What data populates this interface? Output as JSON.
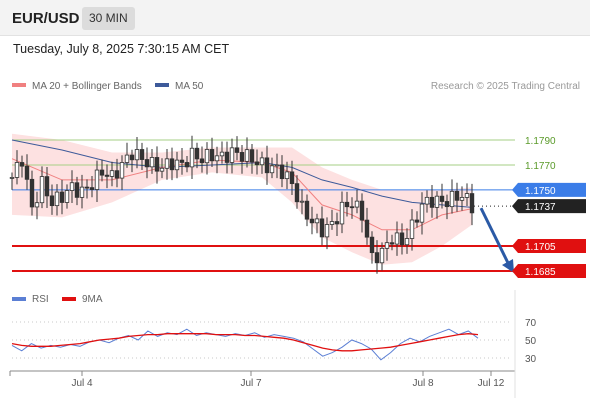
{
  "header": {
    "symbol": "EUR/USD",
    "timeframe": "30 MIN",
    "datetime": "Tuesday, July 8, 2025 7:30:15 AM CET"
  },
  "legend": {
    "ma20_label": "MA 20 + Bollinger Bands",
    "ma50_label": "MA 50",
    "credit": "Research © 2025 Trading Central",
    "rsi_label": "RSI",
    "rsi_ma_label": "9MA"
  },
  "colors": {
    "ma20": "#f08080",
    "band_fill": "#fde1e1",
    "ma50": "#3d5a9a",
    "candle": "#333333",
    "resistance": "#a6cf85",
    "pivot": "#3b7de8",
    "support": "#e01010",
    "current": "#222222",
    "arrow": "#2b5aa6",
    "rsi": "#5b7fd4",
    "rsi_ma": "#e01010"
  },
  "chart_data": [
    {
      "type": "candlestick",
      "title": "EUR/USD 30 MIN",
      "x_ticks": [
        "Jul 4",
        "Jul 7",
        "Jul 8",
        "Jul 12"
      ],
      "levels": [
        {
          "label": "1.1790",
          "value": 1.179,
          "role": "resistance"
        },
        {
          "label": "1.1770",
          "value": 1.177,
          "role": "resistance"
        },
        {
          "label": "1.1750",
          "value": 1.175,
          "role": "pivot"
        },
        {
          "label": "1.1737",
          "value": 1.1737,
          "role": "current"
        },
        {
          "label": "1.1705",
          "value": 1.1705,
          "role": "support"
        },
        {
          "label": "1.1685",
          "value": 1.1685,
          "role": "support"
        }
      ],
      "price_path": [
        [
          0,
          1.176
        ],
        [
          2,
          1.1775
        ],
        [
          4,
          1.1735
        ],
        [
          6,
          1.1755
        ],
        [
          8,
          1.174
        ],
        [
          10,
          1.1745
        ],
        [
          12,
          1.1752
        ],
        [
          14,
          1.1748
        ],
        [
          16,
          1.1755
        ],
        [
          18,
          1.1765
        ],
        [
          20,
          1.176
        ],
        [
          22,
          1.177
        ],
        [
          24,
          1.178
        ],
        [
          26,
          1.1775
        ],
        [
          28,
          1.177
        ],
        [
          30,
          1.1768
        ],
        [
          32,
          1.1772
        ],
        [
          34,
          1.177
        ],
        [
          36,
          1.1778
        ],
        [
          38,
          1.1775
        ],
        [
          40,
          1.1778
        ],
        [
          42,
          1.1776
        ],
        [
          44,
          1.178
        ],
        [
          46,
          1.1778
        ],
        [
          48,
          1.1775
        ],
        [
          50,
          1.177
        ],
        [
          52,
          1.1768
        ],
        [
          54,
          1.1765
        ],
        [
          56,
          1.1755
        ],
        [
          58,
          1.1735
        ],
        [
          60,
          1.1725
        ],
        [
          62,
          1.1718
        ],
        [
          64,
          1.1722
        ],
        [
          66,
          1.1735
        ],
        [
          68,
          1.174
        ],
        [
          70,
          1.173
        ],
        [
          72,
          1.1695
        ],
        [
          74,
          1.17
        ],
        [
          76,
          1.1712
        ],
        [
          78,
          1.1708
        ],
        [
          80,
          1.172
        ],
        [
          82,
          1.1738
        ],
        [
          84,
          1.1742
        ],
        [
          86,
          1.174
        ],
        [
          88,
          1.1743
        ],
        [
          90,
          1.1746
        ],
        [
          92,
          1.1737
        ]
      ],
      "ma20_path": [
        [
          0,
          1.1775
        ],
        [
          10,
          1.1758
        ],
        [
          20,
          1.1758
        ],
        [
          30,
          1.1768
        ],
        [
          40,
          1.1774
        ],
        [
          50,
          1.1772
        ],
        [
          56,
          1.1764
        ],
        [
          62,
          1.1738
        ],
        [
          68,
          1.173
        ],
        [
          74,
          1.1718
        ],
        [
          80,
          1.1718
        ],
        [
          86,
          1.173
        ],
        [
          92,
          1.1735
        ]
      ],
      "ma50_path": [
        [
          0,
          1.179
        ],
        [
          10,
          1.1782
        ],
        [
          20,
          1.1772
        ],
        [
          30,
          1.1768
        ],
        [
          40,
          1.177
        ],
        [
          50,
          1.1772
        ],
        [
          56,
          1.1768
        ],
        [
          62,
          1.1758
        ],
        [
          68,
          1.1752
        ],
        [
          74,
          1.1745
        ],
        [
          80,
          1.174
        ],
        [
          86,
          1.1738
        ],
        [
          92,
          1.1736
        ]
      ],
      "bollinger_upper": [
        [
          0,
          1.1795
        ],
        [
          10,
          1.179
        ],
        [
          20,
          1.178
        ],
        [
          30,
          1.178
        ],
        [
          40,
          1.1784
        ],
        [
          50,
          1.1784
        ],
        [
          56,
          1.1784
        ],
        [
          62,
          1.1768
        ],
        [
          68,
          1.1758
        ],
        [
          74,
          1.175
        ],
        [
          80,
          1.175
        ],
        [
          86,
          1.175
        ],
        [
          92,
          1.1752
        ]
      ],
      "bollinger_lower": [
        [
          0,
          1.173
        ],
        [
          10,
          1.1728
        ],
        [
          20,
          1.174
        ],
        [
          30,
          1.1758
        ],
        [
          40,
          1.1764
        ],
        [
          50,
          1.176
        ],
        [
          56,
          1.174
        ],
        [
          62,
          1.1712
        ],
        [
          68,
          1.17
        ],
        [
          74,
          1.169
        ],
        [
          80,
          1.1692
        ],
        [
          86,
          1.1705
        ],
        [
          92,
          1.1722
        ]
      ],
      "forecast": {
        "from": [
          92,
          1.1737
        ],
        "to": [
          101,
          1.1685
        ]
      }
    },
    {
      "type": "line",
      "title": "RSI",
      "ylim": [
        20,
        80
      ],
      "y_ticks": [
        70,
        50,
        30
      ],
      "series": [
        {
          "name": "RSI",
          "values": [
            44,
            38,
            46,
            41,
            44,
            42,
            45,
            43,
            48,
            50,
            47,
            52,
            55,
            50,
            60,
            54,
            58,
            56,
            62,
            55,
            58,
            56,
            54,
            57,
            55,
            58,
            53,
            56,
            54,
            52,
            48,
            40,
            32,
            36,
            42,
            50,
            46,
            40,
            28,
            36,
            46,
            52,
            48,
            54,
            58,
            62,
            56,
            60,
            52
          ]
        },
        {
          "name": "9MA",
          "values": [
            46,
            44,
            43,
            43,
            43,
            44,
            45,
            46,
            48,
            50,
            51,
            52,
            54,
            55,
            56,
            56,
            57,
            57,
            57,
            57,
            57,
            56,
            56,
            56,
            55,
            55,
            54,
            53,
            52,
            50,
            47,
            44,
            41,
            39,
            38,
            38,
            39,
            40,
            41,
            42,
            44,
            46,
            48,
            50,
            52,
            54,
            56,
            57,
            56
          ]
        }
      ]
    }
  ]
}
